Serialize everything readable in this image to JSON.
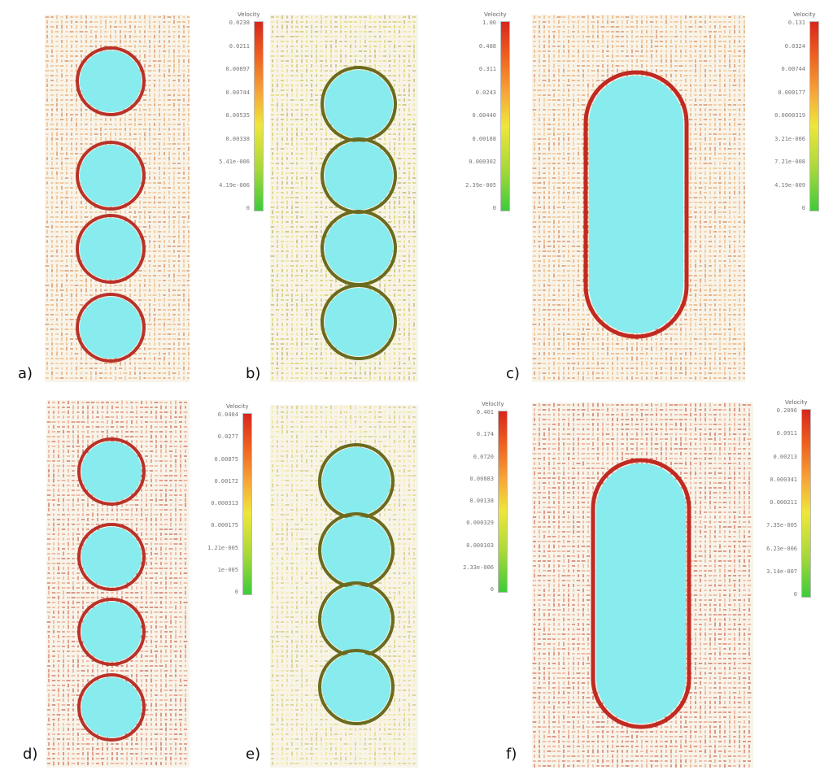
{
  "figure": {
    "background": "#ffffff",
    "particle_color": "#88ecee",
    "panels": [
      {
        "id": "a",
        "label": "a)",
        "shape": "four-circles",
        "tone": "orange",
        "legend_title": "Velocity",
        "legend_ticks": [
          "0.0238",
          "0.0211",
          "0.00897",
          "0.00744",
          "0.00535",
          "0.00338",
          "5.41e-006",
          "4.19e-006",
          "0"
        ]
      },
      {
        "id": "b",
        "label": "b)",
        "shape": "four-circles",
        "tone": "yellow"
      },
      {
        "id": "c",
        "label": "c)",
        "shape": "capsule",
        "tone": "orange",
        "legend_title": "Velocity",
        "legend_ticks": [
          "1.00",
          "0.488",
          "0.311",
          "0.0243",
          "0.00440",
          "0.00188",
          "0.000302",
          "2.39e-005",
          "0"
        ]
      },
      {
        "id": "c2",
        "label": "",
        "shape": "none",
        "tone": "none",
        "legend_title": "Velocity",
        "legend_ticks": [
          "0.131",
          "0.0324",
          "0.00744",
          "0.000177",
          "0.0000319",
          "3.21e-006",
          "7.21e-008",
          "4.19e-009",
          "0"
        ]
      },
      {
        "id": "d",
        "label": "d)",
        "shape": "four-circles",
        "tone": "red",
        "legend_title": "Velocity",
        "legend_ticks": [
          "0.0404",
          "0.0277",
          "0.00875",
          "0.00172",
          "0.000313",
          "0.000175",
          "1.21e-005",
          "1e-005",
          "0"
        ]
      },
      {
        "id": "e",
        "label": "e)",
        "shape": "four-circles",
        "tone": "yellow-light"
      },
      {
        "id": "e2",
        "label": "",
        "shape": "none",
        "tone": "none",
        "legend_title": "Velocity",
        "legend_ticks": [
          "0.401",
          "0.174",
          "0.0720",
          "0.00883",
          "0.00138",
          "0.000329",
          "0.000103",
          "2.33e-006",
          "0"
        ]
      },
      {
        "id": "f",
        "label": "f)",
        "shape": "capsule",
        "tone": "red",
        "legend_title": "Velocity",
        "legend_ticks": [
          "0.2096",
          "0.0911",
          "0.00213",
          "0.000341",
          "0.000211",
          "7.35e-005",
          "6.23e-006",
          "3.14e-007",
          "0"
        ]
      }
    ]
  }
}
